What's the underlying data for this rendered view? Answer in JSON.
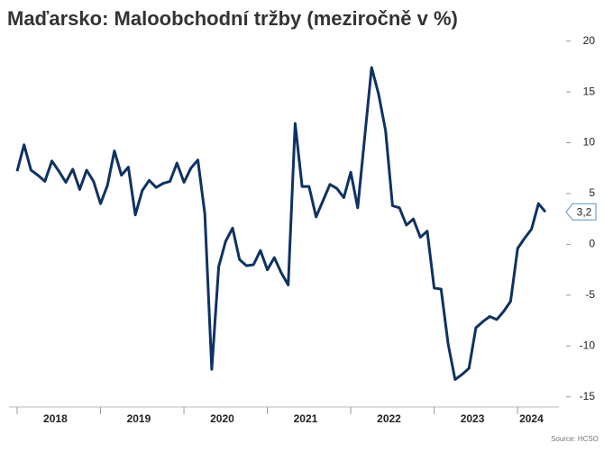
{
  "chart_data": {
    "type": "line",
    "title": "Maďarsko: Maloobchodní tržby (meziročně v %)",
    "source": "Source: HCSO",
    "x_labels": [
      "2018",
      "2019",
      "2020",
      "2021",
      "2022",
      "2023",
      "2024"
    ],
    "values": [
      7.2,
      9.8,
      7.3,
      6.8,
      6.2,
      8.2,
      7.2,
      6.1,
      7.4,
      5.4,
      7.3,
      6.2,
      4.0,
      5.8,
      9.2,
      6.8,
      7.6,
      2.9,
      5.3,
      6.3,
      5.6,
      6.0,
      6.2,
      8.0,
      6.1,
      7.5,
      8.3,
      3.0,
      -12.3,
      -2.2,
      0.3,
      1.6,
      -1.5,
      -2.1,
      -2.0,
      -0.6,
      -2.5,
      -1.3,
      -2.8,
      -4.0,
      11.9,
      5.7,
      5.7,
      2.7,
      4.3,
      5.9,
      5.5,
      4.6,
      7.1,
      3.6,
      10.5,
      17.4,
      14.8,
      11.2,
      3.8,
      3.6,
      1.9,
      2.5,
      0.7,
      1.3,
      -4.3,
      -4.4,
      -9.8,
      -13.3,
      -12.8,
      -12.2,
      -8.2,
      -7.6,
      -7.1,
      -7.4,
      -6.6,
      -5.6,
      -0.4,
      0.6,
      1.5,
      4.0,
      3.2
    ],
    "value_labels": [
      null,
      null,
      null,
      null,
      null,
      null,
      null,
      null,
      null,
      null,
      null,
      null,
      null,
      null,
      null,
      null,
      null,
      null,
      null,
      null,
      null,
      null,
      null,
      null,
      null,
      null,
      null,
      null,
      null,
      null,
      null,
      null,
      null,
      null,
      null,
      null,
      null,
      null,
      null,
      null,
      null,
      null,
      null,
      null,
      null,
      null,
      null,
      null,
      null,
      null,
      null,
      null,
      null,
      null,
      null,
      null,
      null,
      null,
      null,
      null,
      null,
      null,
      null,
      null,
      null,
      null,
      null,
      null,
      null,
      null,
      null,
      null,
      null,
      null,
      null,
      null,
      "3,2"
    ],
    "color": "#0e3263",
    "ylim": [
      -16,
      20.5
    ],
    "yticks": [
      20,
      15,
      10,
      5,
      0,
      -5,
      -10,
      -15
    ],
    "y_axis_side": "right"
  }
}
